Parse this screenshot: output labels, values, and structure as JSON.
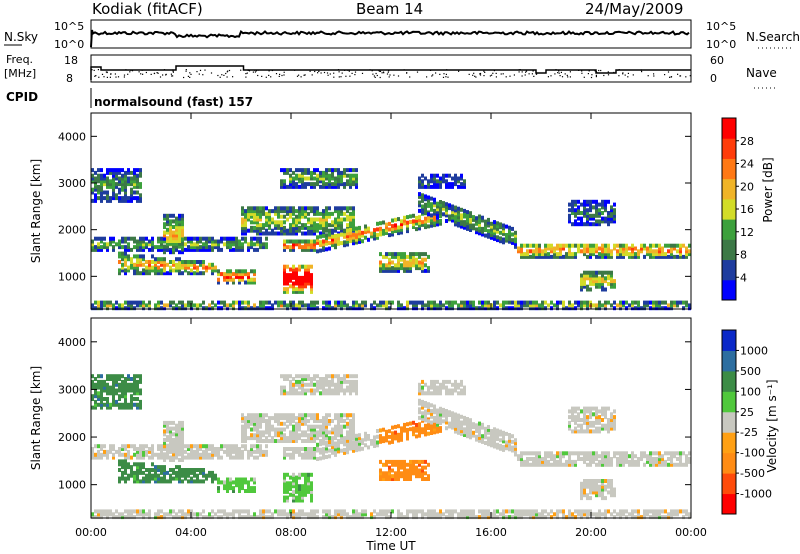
{
  "header": {
    "radar": "Kodiak (fitACF)",
    "beam": "Beam 14",
    "date": "24/May/2009"
  },
  "top_panels": {
    "nsky_label": "N.Sky",
    "nsky_ticks": [
      "10^5",
      "10^0"
    ],
    "nsearch_label": "N.Search",
    "nsearch_ticks": [
      "10^5",
      "10^0"
    ],
    "freq_label_1": "Freq.",
    "freq_label_2": "[MHz]",
    "freq_ticks": [
      "18",
      "8"
    ],
    "nave_label": "Nave",
    "nave_ticks": [
      "60",
      "0"
    ],
    "cpid_label": "CPID",
    "cpid_value": "normalsound (fast) 157"
  },
  "colors": {
    "power_scale": [
      "#0000ff",
      "#1e3c9e",
      "#3c7846",
      "#3ca03c",
      "#d2dc28",
      "#f0b428",
      "#ff7814",
      "#ff3c0a",
      "#ff0000"
    ],
    "velocity_scale": [
      "#ff0000",
      "#ff4b0a",
      "#ff8c14",
      "#ffa014",
      "#c8c8c0",
      "#50c83c",
      "#3c8c46",
      "#2d6ea0",
      "#0a28c8"
    ]
  },
  "chart_data": [
    {
      "type": "heatmap",
      "name": "power",
      "ylabel": "Slant Range [km]",
      "yticks": [
        "4000",
        "3000",
        "2000",
        "1000"
      ],
      "ylim": [
        300,
        4500
      ],
      "xlim": [
        "00:00",
        "24:00"
      ],
      "colorbar_label": "Power [dB]",
      "colorbar_ticks": [
        "28",
        "24",
        "20",
        "16",
        "12",
        "8",
        "4"
      ],
      "colorbar_range": [
        0,
        32
      ]
    },
    {
      "type": "heatmap",
      "name": "velocity",
      "ylabel": "Slant Range [km]",
      "yticks": [
        "4000",
        "3000",
        "2000",
        "1000"
      ],
      "ylim": [
        300,
        4500
      ],
      "xlim": [
        "00:00",
        "24:00"
      ],
      "xlabel": "Time UT",
      "xticks": [
        "00:00",
        "04:00",
        "08:00",
        "12:00",
        "16:00",
        "20:00",
        "00:00"
      ],
      "colorbar_label": "Velocity [m s⁻¹]",
      "colorbar_ticks": [
        "1000",
        "500",
        "100",
        "25",
        "-25",
        "-100",
        "-500",
        "-1000"
      ]
    }
  ]
}
